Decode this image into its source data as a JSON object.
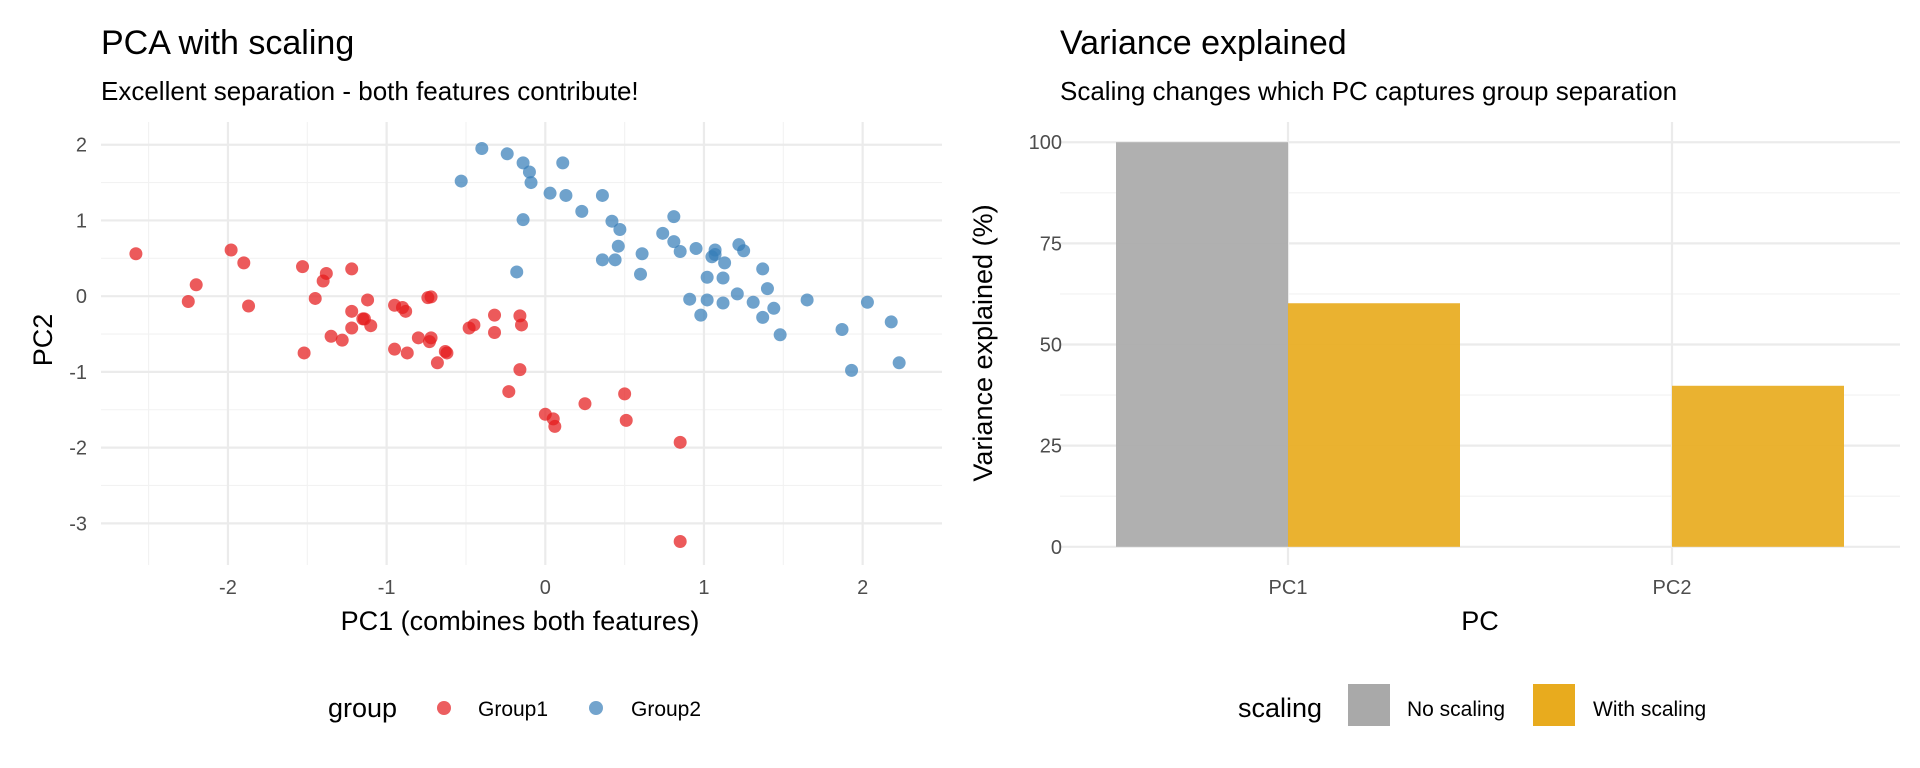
{
  "chart_data": [
    {
      "type": "scatter",
      "title": "PCA with scaling",
      "subtitle": "Excellent separation - both features contribute!",
      "xlabel": "PC1 (combines both features)",
      "ylabel": "PC2",
      "xlim": [
        -2.8,
        2.5
      ],
      "ylim": [
        -3.55,
        2.3
      ],
      "x_ticks": [
        -2,
        -1,
        0,
        1,
        2
      ],
      "x_tick_labels": [
        "-2",
        "-1",
        "0",
        "1",
        "2"
      ],
      "y_ticks": [
        -3,
        -2,
        -1,
        0,
        1,
        2
      ],
      "y_tick_labels": [
        "-3",
        "-2",
        "-1",
        "0",
        "1",
        "2"
      ],
      "grid": true,
      "legend": {
        "title": "group",
        "position": "bottom"
      },
      "series": [
        {
          "name": "Group1",
          "color": "#E41A1C",
          "points": [
            [
              -2.58,
              0.56
            ],
            [
              -2.2,
              0.15
            ],
            [
              -2.25,
              -0.07
            ],
            [
              -1.98,
              0.61
            ],
            [
              -1.9,
              0.44
            ],
            [
              -1.87,
              -0.13
            ],
            [
              -1.53,
              0.39
            ],
            [
              -1.52,
              -0.75
            ],
            [
              -1.45,
              -0.03
            ],
            [
              -1.4,
              0.2
            ],
            [
              -1.38,
              0.3
            ],
            [
              -1.35,
              -0.53
            ],
            [
              -1.28,
              -0.58
            ],
            [
              -1.22,
              0.36
            ],
            [
              -1.22,
              -0.2
            ],
            [
              -1.22,
              -0.42
            ],
            [
              -1.15,
              -0.3
            ],
            [
              -1.12,
              -0.05
            ],
            [
              -1.1,
              -0.39
            ],
            [
              -1.14,
              -0.3
            ],
            [
              -0.95,
              -0.12
            ],
            [
              -0.9,
              -0.15
            ],
            [
              -0.88,
              -0.2
            ],
            [
              -0.87,
              -0.75
            ],
            [
              -0.95,
              -0.7
            ],
            [
              -0.8,
              -0.55
            ],
            [
              -0.74,
              -0.02
            ],
            [
              -0.72,
              -0.01
            ],
            [
              -0.72,
              -0.55
            ],
            [
              -0.73,
              -0.6
            ],
            [
              -0.68,
              -0.88
            ],
            [
              -0.63,
              -0.73
            ],
            [
              -0.62,
              -0.75
            ],
            [
              -0.48,
              -0.42
            ],
            [
              -0.45,
              -0.38
            ],
            [
              -0.32,
              -0.25
            ],
            [
              -0.32,
              -0.48
            ],
            [
              -0.16,
              -0.26
            ],
            [
              -0.15,
              -0.38
            ],
            [
              -0.16,
              -0.97
            ],
            [
              -0.23,
              -1.26
            ],
            [
              0.0,
              -1.56
            ],
            [
              0.05,
              -1.62
            ],
            [
              0.06,
              -1.72
            ],
            [
              0.25,
              -1.42
            ],
            [
              0.5,
              -1.29
            ],
            [
              0.51,
              -1.64
            ],
            [
              0.85,
              -1.93
            ],
            [
              0.85,
              -3.24
            ]
          ]
        },
        {
          "name": "Group2",
          "color": "#377EB8",
          "points": [
            [
              -0.4,
              1.95
            ],
            [
              -0.24,
              1.88
            ],
            [
              -0.14,
              1.76
            ],
            [
              -0.1,
              1.64
            ],
            [
              -0.09,
              1.5
            ],
            [
              -0.53,
              1.52
            ],
            [
              0.11,
              1.76
            ],
            [
              0.03,
              1.36
            ],
            [
              0.13,
              1.33
            ],
            [
              0.23,
              1.12
            ],
            [
              0.36,
              1.33
            ],
            [
              -0.14,
              1.01
            ],
            [
              0.42,
              0.99
            ],
            [
              0.47,
              0.88
            ],
            [
              0.46,
              0.66
            ],
            [
              0.36,
              0.48
            ],
            [
              0.44,
              0.48
            ],
            [
              0.61,
              0.56
            ],
            [
              0.6,
              0.29
            ],
            [
              0.74,
              0.83
            ],
            [
              0.81,
              0.72
            ],
            [
              0.81,
              1.05
            ],
            [
              0.85,
              0.59
            ],
            [
              0.95,
              0.63
            ],
            [
              1.05,
              0.52
            ],
            [
              1.07,
              0.55
            ],
            [
              1.07,
              0.61
            ],
            [
              1.13,
              0.44
            ],
            [
              1.22,
              0.68
            ],
            [
              1.25,
              0.6
            ],
            [
              1.37,
              0.36
            ],
            [
              1.02,
              0.25
            ],
            [
              1.12,
              0.24
            ],
            [
              1.4,
              0.1
            ],
            [
              1.21,
              0.03
            ],
            [
              0.91,
              -0.04
            ],
            [
              1.02,
              -0.05
            ],
            [
              1.12,
              -0.09
            ],
            [
              1.31,
              -0.08
            ],
            [
              1.44,
              -0.16
            ],
            [
              0.98,
              -0.25
            ],
            [
              1.37,
              -0.28
            ],
            [
              1.48,
              -0.51
            ],
            [
              1.65,
              -0.05
            ],
            [
              -0.18,
              0.32
            ],
            [
              1.87,
              -0.44
            ],
            [
              2.03,
              -0.08
            ],
            [
              2.18,
              -0.34
            ],
            [
              1.93,
              -0.98
            ],
            [
              2.23,
              -0.88
            ]
          ]
        }
      ]
    },
    {
      "type": "bar",
      "title": "Variance explained",
      "subtitle": "Scaling changes which PC captures group separation",
      "xlabel": "PC",
      "ylabel": "Variance explained (%)",
      "categories": [
        "PC1",
        "PC2"
      ],
      "ylim": [
        -4.5,
        105
      ],
      "y_ticks": [
        0,
        25,
        50,
        75,
        100
      ],
      "y_tick_labels": [
        "0",
        "25",
        "50",
        "75",
        "100"
      ],
      "grid": true,
      "legend": {
        "title": "scaling",
        "position": "bottom"
      },
      "series": [
        {
          "name": "No scaling",
          "color": "#A9A9A9",
          "values": [
            100,
            0
          ]
        },
        {
          "name": "With scaling",
          "color": "#E8AB1E",
          "values": [
            60.2,
            39.8
          ]
        }
      ]
    }
  ]
}
